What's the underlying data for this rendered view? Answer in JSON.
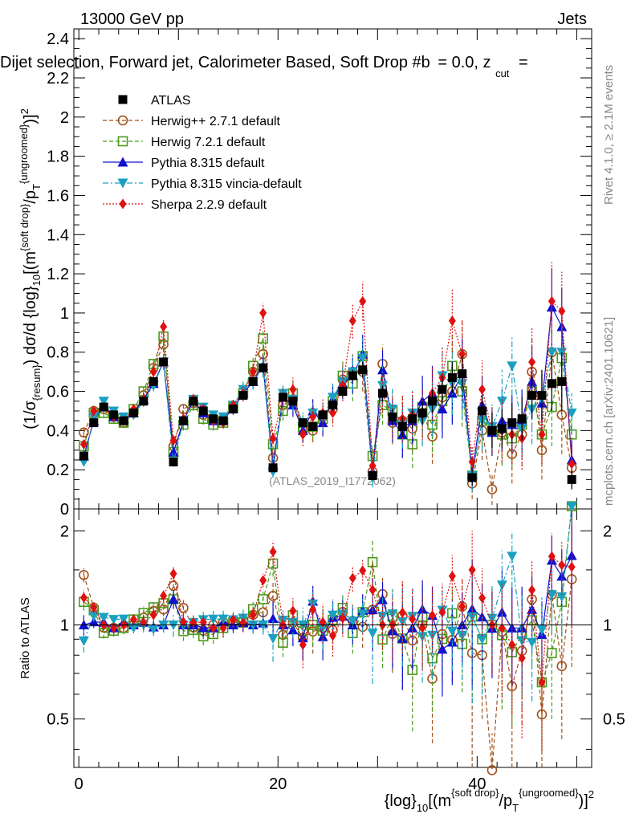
{
  "header": {
    "energy_label": "13000 GeV pp",
    "category_label": "Jets",
    "plot_title": "Dijet selection, Forward jet, Calorimeter Based, Soft Drop #b = 0.0, z_cut = ...",
    "ylabel_main": "(1/σ_{resum}) dσ/d {log}_10[(m^{soft drop}/p_T^{ungroomed})^2]",
    "ylabel_ratio": "Ratio to ATLAS",
    "xlabel": "{log}_10[(m^{soft drop}/p_T^{ungroomed})^2]",
    "side_label_top": "Rivet 4.1.0, ≥ 2.1M events",
    "side_label_bottom": "mcplots.cern.ch [arXiv:2401.10621]",
    "watermark": "(ATLAS_2019_I1772062)"
  },
  "text_fragments": {
    "title_main": "Dijet selection, Forward jet, Calorimeter Based, Soft Drop #b",
    "title_eq": "= 0.0, z",
    "title_cut": "cut",
    "title_tail": "=",
    "y_prefix": "(1/σ",
    "y_resum": "{resum}",
    "y_mid": ") dσ/d {log}",
    "y_10": "10",
    "y_bracket": "[(m",
    "y_soft": "{soft drop}",
    "y_slash": "/p",
    "y_T": "T",
    "y_ungroomed": "{ungroomed}",
    "y_close": ")]",
    "y_2": "2",
    "x_prefix": "{log}",
    "x_10": "10",
    "x_bracket": "[(m",
    "x_soft": "{soft drop}",
    "x_slash": "/p",
    "x_T": "T",
    "x_ungroomed": "{ungroomed}",
    "x_close": ")]",
    "x_2": "2"
  },
  "colors": {
    "ATLAS": "#000000",
    "Herwig++ 2.7.1 default": "#a0521b",
    "Herwig 7.2.1 default": "#4a9a1a",
    "Pythia 8.315 default": "#1010d0",
    "Pythia 8.315 vincia-default": "#1aa0c0",
    "Sherpa 2.2.9 default": "#e01010"
  },
  "chart_data": [
    {
      "type": "scatter",
      "panel": "main",
      "title": "Dijet selection, Forward jet, Calorimeter Based, Soft Drop #b = 0.0, z_cut =",
      "xlabel": "",
      "ylabel": "(1/σ_{resum}) dσ/d {log}_10[(m^{soft drop}/p_T^{ungroomed})^2]",
      "xlim": [
        -0.5,
        51.5
      ],
      "ylim": [
        0,
        2.45
      ],
      "yticks": [
        0,
        0.2,
        0.4,
        0.6,
        0.8,
        1,
        1.2,
        1.4,
        1.6,
        1.8,
        2,
        2.2,
        2.4
      ],
      "ytick_labels": [
        "0",
        "0.2",
        "0.4",
        "0.6",
        "0.8",
        "1",
        "1.2",
        "1.4",
        "1.6",
        "1.8",
        "2",
        "2.2",
        "2.4"
      ],
      "x": [
        0.5,
        1.5,
        2.5,
        3.5,
        4.5,
        5.5,
        6.5,
        7.5,
        8.5,
        9.5,
        10.5,
        11.5,
        12.5,
        13.5,
        14.5,
        15.5,
        16.5,
        17.5,
        18.5,
        19.5,
        20.5,
        21.5,
        22.5,
        23.5,
        24.5,
        25.5,
        26.5,
        27.5,
        28.5,
        29.5,
        30.5,
        31.5,
        32.5,
        33.5,
        34.5,
        35.5,
        36.5,
        37.5,
        38.5,
        39.5,
        40.5,
        41.5,
        42.5,
        43.5,
        44.5,
        45.5,
        46.5,
        47.5,
        48.5,
        49.5
      ],
      "series": [
        {
          "name": "ATLAS",
          "marker": "square",
          "line": "none",
          "values": [
            0.27,
            0.44,
            0.52,
            0.48,
            0.45,
            0.49,
            0.55,
            0.65,
            0.75,
            0.24,
            0.45,
            0.55,
            0.5,
            0.46,
            0.45,
            0.51,
            0.58,
            0.65,
            0.72,
            0.21,
            0.57,
            0.55,
            0.44,
            0.42,
            0.48,
            0.53,
            0.6,
            0.68,
            0.71,
            0.17,
            0.59,
            0.47,
            0.42,
            0.46,
            0.49,
            0.55,
            0.61,
            0.67,
            0.69,
            0.16,
            0.5,
            0.4,
            0.41,
            0.44,
            0.46,
            0.58,
            0.58,
            0.64,
            0.65,
            0.15
          ],
          "errors": [
            0.01,
            0.01,
            0.01,
            0.01,
            0.01,
            0.01,
            0.01,
            0.02,
            0.02,
            0.01,
            0.01,
            0.01,
            0.01,
            0.01,
            0.01,
            0.01,
            0.02,
            0.02,
            0.02,
            0.01,
            0.02,
            0.02,
            0.02,
            0.02,
            0.02,
            0.03,
            0.03,
            0.03,
            0.04,
            0.02,
            0.04,
            0.04,
            0.05,
            0.05,
            0.06,
            0.06,
            0.07,
            0.08,
            0.09,
            0.04,
            0.08,
            0.09,
            0.1,
            0.1,
            0.11,
            0.12,
            0.13,
            0.14,
            0.15,
            0.05
          ]
        },
        {
          "name": "Herwig++ 2.7.1 default",
          "marker": "open-circle",
          "line": "dashed",
          "values": [
            0.39,
            0.5,
            0.51,
            0.47,
            0.44,
            0.49,
            0.58,
            0.72,
            0.84,
            0.32,
            0.51,
            0.54,
            0.48,
            0.46,
            0.46,
            0.52,
            0.6,
            0.7,
            0.79,
            0.26,
            0.53,
            0.56,
            0.4,
            0.4,
            0.47,
            0.51,
            0.66,
            0.7,
            0.7,
            0.19,
            0.74,
            0.44,
            0.45,
            0.41,
            0.49,
            0.37,
            0.57,
            0.6,
            0.79,
            0.13,
            0.4,
            0.1,
            0.39,
            0.28,
            0.38,
            0.7,
            0.3,
            0.8,
            0.48,
            0.21
          ],
          "errors": [
            0.02,
            0.02,
            0.02,
            0.02,
            0.02,
            0.02,
            0.03,
            0.03,
            0.04,
            0.02,
            0.03,
            0.03,
            0.03,
            0.03,
            0.03,
            0.03,
            0.04,
            0.04,
            0.05,
            0.03,
            0.05,
            0.06,
            0.06,
            0.06,
            0.07,
            0.07,
            0.08,
            0.09,
            0.1,
            0.05,
            0.1,
            0.11,
            0.12,
            0.12,
            0.13,
            0.14,
            0.15,
            0.16,
            0.18,
            0.08,
            0.15,
            0.08,
            0.16,
            0.15,
            0.16,
            0.18,
            0.15,
            0.2,
            0.2,
            0.1
          ]
        },
        {
          "name": "Herwig 7.2.1 default",
          "marker": "open-square",
          "line": "dashed",
          "values": [
            0.32,
            0.49,
            0.49,
            0.46,
            0.44,
            0.51,
            0.6,
            0.74,
            0.88,
            0.29,
            0.43,
            0.53,
            0.46,
            0.43,
            0.44,
            0.52,
            0.59,
            0.73,
            0.87,
            0.33,
            0.5,
            0.59,
            0.42,
            0.42,
            0.46,
            0.55,
            0.68,
            0.64,
            0.78,
            0.27,
            0.53,
            0.5,
            0.38,
            0.33,
            0.52,
            0.43,
            0.55,
            0.73,
            0.6,
            0.17,
            0.45,
            0.4,
            0.38,
            0.36,
            0.43,
            0.6,
            0.38,
            0.52,
            0.77,
            0.38
          ],
          "errors": [
            0.02,
            0.02,
            0.02,
            0.02,
            0.02,
            0.02,
            0.03,
            0.03,
            0.04,
            0.02,
            0.03,
            0.03,
            0.03,
            0.03,
            0.03,
            0.03,
            0.04,
            0.04,
            0.05,
            0.03,
            0.05,
            0.06,
            0.06,
            0.06,
            0.07,
            0.07,
            0.08,
            0.09,
            0.1,
            0.05,
            0.1,
            0.11,
            0.12,
            0.12,
            0.13,
            0.14,
            0.15,
            0.16,
            0.18,
            0.08,
            0.15,
            0.12,
            0.16,
            0.15,
            0.16,
            0.18,
            0.15,
            0.2,
            0.2,
            0.1
          ]
        },
        {
          "name": "Pythia 8.315 default",
          "marker": "triangle-up",
          "line": "solid",
          "values": [
            0.27,
            0.45,
            0.53,
            0.47,
            0.46,
            0.49,
            0.56,
            0.64,
            0.75,
            0.29,
            0.45,
            0.55,
            0.49,
            0.45,
            0.46,
            0.51,
            0.59,
            0.65,
            0.73,
            0.22,
            0.57,
            0.53,
            0.4,
            0.5,
            0.44,
            0.56,
            0.64,
            0.68,
            0.79,
            0.19,
            0.71,
            0.45,
            0.38,
            0.45,
            0.55,
            0.59,
            0.51,
            0.59,
            0.69,
            0.18,
            0.53,
            0.39,
            0.45,
            0.43,
            0.45,
            0.65,
            0.54,
            1.03,
            0.93,
            0.25
          ],
          "errors": [
            0.02,
            0.02,
            0.02,
            0.02,
            0.02,
            0.02,
            0.03,
            0.03,
            0.04,
            0.02,
            0.03,
            0.03,
            0.03,
            0.03,
            0.03,
            0.03,
            0.04,
            0.04,
            0.05,
            0.03,
            0.05,
            0.06,
            0.06,
            0.06,
            0.07,
            0.07,
            0.08,
            0.09,
            0.1,
            0.05,
            0.1,
            0.11,
            0.12,
            0.12,
            0.13,
            0.14,
            0.15,
            0.16,
            0.18,
            0.08,
            0.15,
            0.12,
            0.16,
            0.15,
            0.16,
            0.18,
            0.15,
            0.2,
            0.2,
            0.1
          ]
        },
        {
          "name": "Pythia 8.315 vincia-default",
          "marker": "triangle-down",
          "line": "dashdot",
          "values": [
            0.24,
            0.47,
            0.55,
            0.5,
            0.47,
            0.48,
            0.55,
            0.63,
            0.75,
            0.24,
            0.45,
            0.56,
            0.52,
            0.48,
            0.47,
            0.53,
            0.61,
            0.65,
            0.72,
            0.19,
            0.59,
            0.56,
            0.44,
            0.49,
            0.47,
            0.57,
            0.65,
            0.7,
            0.77,
            0.16,
            0.63,
            0.51,
            0.43,
            0.49,
            0.45,
            0.51,
            0.68,
            0.64,
            0.64,
            0.17,
            0.45,
            0.42,
            0.55,
            0.73,
            0.41,
            0.51,
            0.56,
            0.8,
            0.8,
            0.49
          ],
          "errors": [
            0.02,
            0.02,
            0.02,
            0.02,
            0.02,
            0.02,
            0.03,
            0.03,
            0.04,
            0.02,
            0.03,
            0.03,
            0.03,
            0.03,
            0.03,
            0.03,
            0.04,
            0.04,
            0.05,
            0.03,
            0.05,
            0.06,
            0.06,
            0.06,
            0.07,
            0.07,
            0.08,
            0.09,
            0.1,
            0.05,
            0.1,
            0.11,
            0.12,
            0.12,
            0.13,
            0.14,
            0.15,
            0.16,
            0.18,
            0.08,
            0.15,
            0.12,
            0.16,
            0.15,
            0.16,
            0.18,
            0.15,
            0.2,
            0.2,
            0.1
          ]
        },
        {
          "name": "Sherpa 2.2.9 default",
          "marker": "diamond",
          "line": "dotted",
          "values": [
            0.33,
            0.5,
            0.52,
            0.47,
            0.45,
            0.51,
            0.56,
            0.7,
            0.93,
            0.35,
            0.46,
            0.56,
            0.51,
            0.45,
            0.44,
            0.53,
            0.59,
            0.7,
            1.0,
            0.36,
            0.57,
            0.61,
            0.38,
            0.47,
            0.49,
            0.49,
            0.63,
            0.96,
            1.06,
            0.22,
            0.59,
            0.47,
            0.46,
            0.48,
            0.48,
            0.59,
            0.67,
            0.96,
            0.79,
            0.24,
            0.61,
            0.4,
            0.4,
            0.38,
            0.36,
            0.75,
            0.38,
            1.06,
            1.01,
            0.23
          ],
          "errors": [
            0.02,
            0.02,
            0.02,
            0.02,
            0.02,
            0.02,
            0.03,
            0.03,
            0.04,
            0.02,
            0.03,
            0.03,
            0.03,
            0.03,
            0.03,
            0.03,
            0.04,
            0.04,
            0.05,
            0.03,
            0.05,
            0.06,
            0.06,
            0.06,
            0.07,
            0.07,
            0.08,
            0.09,
            0.1,
            0.05,
            0.1,
            0.11,
            0.12,
            0.12,
            0.13,
            0.14,
            0.15,
            0.16,
            0.18,
            0.08,
            0.15,
            0.12,
            0.16,
            0.15,
            0.16,
            0.18,
            0.15,
            0.2,
            0.2,
            0.1
          ]
        }
      ]
    },
    {
      "type": "scatter",
      "panel": "ratio",
      "ylabel": "Ratio to ATLAS",
      "xlabel": "{log}_10[(m^{soft drop}/p_T^{ungroomed})^2]",
      "xlim": [
        -0.5,
        51.5
      ],
      "ylim": [
        0.35,
        2.35
      ],
      "yticks": [
        0.5,
        1,
        2
      ],
      "ytick_labels": [
        "0.5",
        "1",
        "2"
      ],
      "xticks": [
        0,
        20,
        40
      ],
      "xtick_labels": [
        "0",
        "20",
        "40"
      ],
      "reference_line": 1
    }
  ]
}
